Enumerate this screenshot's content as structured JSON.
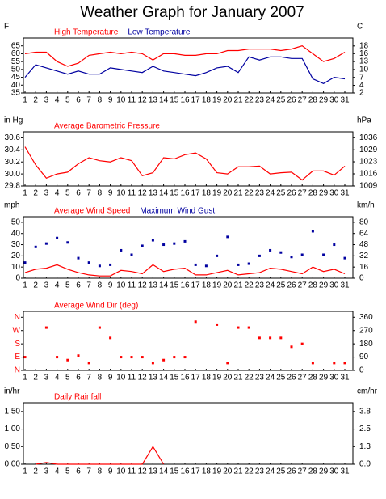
{
  "title": "Weather Graph for January 2007",
  "chart_data": [
    {
      "type": "line",
      "y_unit": "F",
      "y2_unit": "C",
      "categories": [
        "1",
        "2",
        "3",
        "4",
        "5",
        "6",
        "7",
        "8",
        "9",
        "10",
        "11",
        "12",
        "13",
        "14",
        "15",
        "16",
        "17",
        "18",
        "19",
        "20",
        "21",
        "22",
        "23",
        "24",
        "25",
        "26",
        "27",
        "28",
        "29",
        "30",
        "31"
      ],
      "ylim": [
        35,
        70
      ],
      "yticks": [
        35,
        40,
        45,
        50,
        55,
        60,
        65
      ],
      "y2lim": [
        1.7,
        21.1
      ],
      "y2ticks": [
        {
          "value": 1.7,
          "label": "2"
        },
        {
          "value": 4.4,
          "label": "4"
        },
        {
          "value": 7.2,
          "label": "7"
        },
        {
          "value": 10,
          "label": "10"
        },
        {
          "value": 12.8,
          "label": "13"
        },
        {
          "value": 15.6,
          "label": "16"
        },
        {
          "value": 18.3,
          "label": "18"
        }
      ],
      "series": [
        {
          "name": "High Temperature",
          "color": "#ff0000",
          "mark": "line",
          "values": [
            60,
            61,
            61,
            55,
            52,
            54,
            59,
            60,
            61,
            60,
            61,
            60,
            56,
            60,
            60,
            59,
            59,
            60,
            60,
            62,
            62,
            63,
            63,
            63,
            62,
            63,
            65,
            60,
            55,
            57,
            61
          ]
        },
        {
          "name": "Low Temperature",
          "color": "#0000a0",
          "mark": "line",
          "values": [
            45,
            53,
            51,
            49,
            47,
            49,
            47,
            47,
            51,
            50,
            49,
            48,
            52,
            49,
            48,
            47,
            46,
            48,
            51,
            52,
            48,
            58,
            56,
            58,
            58,
            57,
            57,
            44,
            41,
            45,
            44
          ]
        }
      ]
    },
    {
      "type": "line",
      "y_unit": "in Hg",
      "y2_unit": "hPa",
      "categories": [
        "1",
        "2",
        "3",
        "4",
        "5",
        "6",
        "7",
        "8",
        "9",
        "10",
        "11",
        "12",
        "13",
        "14",
        "15",
        "16",
        "17",
        "18",
        "19",
        "20",
        "21",
        "22",
        "23",
        "24",
        "25",
        "26",
        "27",
        "28",
        "29",
        "30",
        "31"
      ],
      "ylim": [
        29.8,
        30.7
      ],
      "yticks": [
        29.8,
        {
          "value": 30.0,
          "label": "30.0"
        },
        30.2,
        30.4,
        30.6
      ],
      "y2lim": [
        1009.1,
        1039.5
      ],
      "y2ticks": [
        {
          "value": 1009.1,
          "label": "1009"
        },
        {
          "value": 1015.9,
          "label": "1016"
        },
        {
          "value": 1022.7,
          "label": "1023"
        },
        {
          "value": 1029.4,
          "label": "1029"
        },
        {
          "value": 1036.2,
          "label": "1036"
        }
      ],
      "series": [
        {
          "name": "Average Barometric Pressure",
          "color": "#ff0000",
          "mark": "line",
          "values": [
            30.45,
            30.15,
            29.93,
            30.0,
            30.03,
            30.17,
            30.27,
            30.22,
            30.2,
            30.27,
            30.22,
            29.97,
            30.02,
            30.27,
            30.25,
            30.32,
            30.35,
            30.25,
            30.02,
            30.0,
            30.12,
            30.12,
            30.13,
            30.0,
            30.02,
            30.03,
            29.9,
            30.05,
            30.05,
            29.98,
            30.13
          ]
        }
      ]
    },
    {
      "type": "line",
      "y_unit": "mph",
      "y2_unit": "km/h",
      "categories": [
        "1",
        "2",
        "3",
        "4",
        "5",
        "6",
        "7",
        "8",
        "9",
        "10",
        "11",
        "12",
        "13",
        "14",
        "15",
        "16",
        "17",
        "18",
        "19",
        "20",
        "21",
        "22",
        "23",
        "24",
        "25",
        "26",
        "27",
        "28",
        "29",
        "30",
        "31"
      ],
      "ylim": [
        0,
        55
      ],
      "yticks": [
        0,
        10,
        20,
        30,
        40,
        50
      ],
      "y2lim": [
        0,
        88.5
      ],
      "y2ticks": [
        0,
        {
          "value": 16.1,
          "label": "16"
        },
        {
          "value": 32.2,
          "label": "32"
        },
        {
          "value": 48.3,
          "label": "48"
        },
        {
          "value": 64.4,
          "label": "64"
        },
        {
          "value": 80.5,
          "label": "80"
        }
      ],
      "series": [
        {
          "name": "Average Wind Speed",
          "color": "#ff0000",
          "mark": "line",
          "values": [
            5,
            8,
            9,
            12,
            8,
            5,
            3,
            2,
            2,
            7,
            6,
            4,
            12,
            6,
            8,
            9,
            3,
            3,
            5,
            7,
            3,
            4,
            5,
            9,
            8,
            6,
            4,
            10,
            6,
            8,
            4
          ]
        },
        {
          "name": "Maximum Wind Gust",
          "color": "#0000a0",
          "mark": "points",
          "values": [
            14,
            28,
            31,
            36,
            32,
            18,
            14,
            11,
            12,
            25,
            21,
            29,
            34,
            30,
            31,
            33,
            12,
            11,
            20,
            37,
            12,
            13,
            20,
            25,
            23,
            19,
            21,
            42,
            21,
            30,
            18
          ]
        }
      ]
    },
    {
      "type": "scatter",
      "ytick_color": "#ff0000",
      "categories": [
        "1",
        "2",
        "3",
        "4",
        "5",
        "6",
        "7",
        "8",
        "9",
        "10",
        "11",
        "12",
        "13",
        "14",
        "15",
        "16",
        "17",
        "18",
        "19",
        "20",
        "21",
        "22",
        "23",
        "24",
        "25",
        "26",
        "27",
        "28",
        "29",
        "30",
        "31"
      ],
      "ylim": [
        0,
        400
      ],
      "yticks": [
        {
          "value": 0,
          "label": "N"
        },
        {
          "value": 90,
          "label": "E"
        },
        {
          "value": 180,
          "label": "S"
        },
        {
          "value": 270,
          "label": "W"
        },
        {
          "value": 360,
          "label": "N"
        }
      ],
      "y2lim": [
        0,
        400
      ],
      "y2ticks": [
        0,
        90,
        180,
        270,
        360
      ],
      "series": [
        {
          "name": "Average Wind Dir (deg)",
          "color": "#ff0000",
          "mark": "points",
          "values": [
            90,
            null,
            290,
            90,
            70,
            100,
            50,
            290,
            220,
            90,
            90,
            90,
            50,
            70,
            90,
            90,
            330,
            null,
            310,
            50,
            290,
            290,
            220,
            220,
            220,
            160,
            180,
            50,
            null,
            50,
            50
          ]
        }
      ]
    },
    {
      "type": "line",
      "y_unit": "in/hr",
      "y2_unit": "cm/hr",
      "categories": [
        "1",
        "2",
        "3",
        "4",
        "5",
        "6",
        "7",
        "8",
        "9",
        "10",
        "11",
        "12",
        "13",
        "14",
        "15",
        "16",
        "17",
        "18",
        "19",
        "20",
        "21",
        "22",
        "23",
        "24",
        "25",
        "26",
        "27",
        "28",
        "29",
        "30",
        "31"
      ],
      "ylim": [
        0,
        1.75
      ],
      "yticks": [
        {
          "value": 0,
          "label": "0.00"
        },
        {
          "value": 0.5,
          "label": "0.50"
        },
        {
          "value": 1,
          "label": "1.00"
        },
        {
          "value": 1.5,
          "label": "1.50"
        }
      ],
      "y2lim": [
        0,
        4.445
      ],
      "y2ticks": [
        {
          "value": 0,
          "label": "0.0"
        },
        {
          "value": 1.27,
          "label": "1.3"
        },
        {
          "value": 2.54,
          "label": "2.5"
        },
        {
          "value": 3.81,
          "label": "3.8"
        }
      ],
      "series": [
        {
          "name": "Daily Rainfall",
          "color": "#ff0000",
          "mark": "line",
          "values": [
            null,
            0,
            0.05,
            0,
            0,
            0,
            0,
            0,
            0,
            0,
            0,
            0,
            0.5,
            0,
            null,
            null,
            null,
            null,
            null,
            null,
            null,
            null,
            null,
            null,
            null,
            null,
            null,
            null,
            null,
            null,
            null
          ]
        }
      ]
    }
  ]
}
